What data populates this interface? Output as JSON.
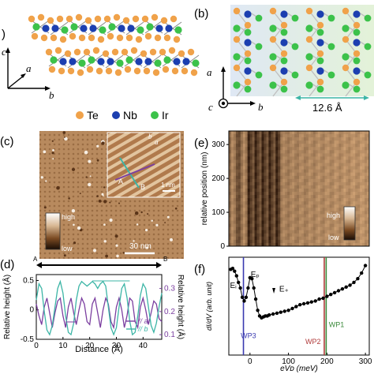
{
  "panels": {
    "a": {
      "label": ")",
      "axes": {
        "c": "c",
        "a": "a",
        "b": "b"
      },
      "legend": [
        {
          "symbol": "Te",
          "color": "#f0a24a"
        },
        {
          "symbol": "Nb",
          "color": "#1c3fb0"
        },
        {
          "symbol": "Ir",
          "color": "#3cc24a"
        }
      ]
    },
    "b": {
      "label": "(b)",
      "axes": {
        "a": "a",
        "c": "c",
        "b": "b"
      },
      "scale": "12.6 Å"
    },
    "c": {
      "label": "(c)",
      "colorbar": {
        "high": "high",
        "low": "low"
      },
      "scalebar": "30 nm",
      "inset": {
        "scalebar": "1 nm",
        "marker_a": "a",
        "marker_b": "b",
        "point_A": "A",
        "point_B": "B"
      }
    },
    "d": {
      "label": "(d)",
      "marker_A": "A",
      "marker_B": "B",
      "legend": [
        {
          "name": "// a",
          "color": "#7b3fa0"
        },
        {
          "name": "// b",
          "color": "#3cb5a6"
        }
      ]
    },
    "e": {
      "label": "(e)",
      "colorbar": {
        "high": "high",
        "low": "low"
      }
    },
    "f": {
      "label": "(f)",
      "annotations": {
        "E1": "Eᵢ",
        "Ep": "Eₚ",
        "Eplus": "E₊"
      },
      "wp_labels": [
        {
          "text": "WP3",
          "color": "#3a3ab0"
        },
        {
          "text": "WP2",
          "color": "#b03a3a"
        },
        {
          "text": "WP1",
          "color": "#3a8a3a"
        }
      ]
    }
  },
  "chart_data": [
    {
      "panel": "d",
      "type": "line",
      "xlabel": "Distance (Å)",
      "ylabel": "Relative height (Å)",
      "ylabel_right": "Relative height (Å)",
      "xticks": [
        0,
        10,
        20,
        30,
        40
      ],
      "yticks_left": [
        -0.5,
        0,
        0.5
      ],
      "yticks_right": [
        0.1,
        0.2,
        0.3
      ],
      "xlim": [
        0,
        47
      ],
      "ylim_left": [
        -0.5,
        0.6
      ],
      "ylim_right": [
        0.08,
        0.36
      ],
      "series": [
        {
          "name": "// a",
          "axis": "left",
          "x": [
            0,
            1,
            2,
            3,
            4,
            5,
            6,
            7,
            8,
            9,
            10,
            11,
            12,
            13,
            14,
            15,
            16,
            17,
            18,
            19,
            20,
            21,
            22,
            23,
            24,
            25,
            26,
            27,
            28,
            29,
            30,
            31,
            32,
            33,
            34,
            35,
            36,
            37,
            38,
            39,
            40,
            41,
            42,
            43,
            44,
            45,
            46,
            47
          ],
          "y": [
            0.1,
            -0.1,
            -0.25,
            0.05,
            0.2,
            -0.05,
            -0.3,
            -0.05,
            0.15,
            0.2,
            -0.1,
            -0.3,
            0.05,
            0.2,
            -0.05,
            -0.25,
            0.0,
            0.2,
            0.1,
            -0.2,
            -0.25,
            0.1,
            0.2,
            -0.05,
            -0.3,
            0.0,
            0.2,
            0.1,
            -0.2,
            -0.3,
            0.05,
            0.2,
            0.0,
            -0.3,
            -0.1,
            0.2,
            0.15,
            -0.2,
            -0.3,
            0.05,
            0.2,
            0.0,
            -0.25,
            -0.05,
            0.15,
            0.1,
            -0.15,
            -0.2
          ]
        },
        {
          "name": "// b",
          "axis": "right",
          "x": [
            0,
            1,
            2,
            3,
            4,
            5,
            6,
            7,
            8,
            9,
            10,
            11,
            12,
            13,
            14,
            15,
            16,
            17,
            18,
            19,
            20,
            21,
            22,
            23,
            24,
            25,
            26,
            27,
            28,
            29,
            30,
            31,
            32,
            33,
            34,
            35,
            36,
            37,
            38,
            39,
            40,
            41,
            42,
            43,
            44,
            45,
            46,
            47
          ],
          "y": [
            0.25,
            0.32,
            0.3,
            0.2,
            0.12,
            0.1,
            0.14,
            0.22,
            0.3,
            0.33,
            0.28,
            0.18,
            0.11,
            0.1,
            0.15,
            0.25,
            0.31,
            0.33,
            0.32,
            0.31,
            0.32,
            0.33,
            0.32,
            0.3,
            0.32,
            0.33,
            0.31,
            0.22,
            0.13,
            0.1,
            0.13,
            0.22,
            0.3,
            0.32,
            0.26,
            0.16,
            0.1,
            0.11,
            0.18,
            0.27,
            0.32,
            0.3,
            0.22,
            0.14,
            0.11,
            0.15,
            0.22,
            0.28
          ]
        }
      ]
    },
    {
      "panel": "e",
      "type": "heatmap",
      "xlabel": "",
      "ylabel": "relative position (nm)",
      "yticks": [
        0,
        100,
        200,
        300
      ],
      "ylim": [
        0,
        340
      ]
    },
    {
      "panel": "f",
      "type": "line",
      "xlabel": "eVᴅ (meV)",
      "ylabel": "dI/dV (arb. unit)",
      "xticks": [
        0,
        100,
        200,
        300
      ],
      "xlim": [
        -55,
        310
      ],
      "ylim": [
        0.0,
        1.05
      ],
      "vlines": [
        {
          "x": -17,
          "color": "#3a3ab0"
        },
        {
          "x": 193,
          "color": "#b03a3a"
        },
        {
          "x": 198,
          "color": "#3a8a3a"
        }
      ],
      "series": [
        {
          "name": "",
          "x": [
            -50,
            -45,
            -40,
            -35,
            -30,
            -25,
            -20,
            -15,
            -10,
            -5,
            0,
            5,
            10,
            15,
            20,
            25,
            30,
            35,
            40,
            45,
            50,
            60,
            70,
            80,
            90,
            100,
            110,
            120,
            130,
            140,
            150,
            160,
            170,
            180,
            190,
            200,
            210,
            220,
            230,
            240,
            250,
            260,
            270,
            280,
            290,
            300
          ],
          "y": [
            0.92,
            0.93,
            0.9,
            0.85,
            0.78,
            0.72,
            0.62,
            0.58,
            0.62,
            0.72,
            0.83,
            0.82,
            0.72,
            0.6,
            0.48,
            0.42,
            0.4,
            0.41,
            0.42,
            0.42,
            0.43,
            0.44,
            0.45,
            0.46,
            0.47,
            0.48,
            0.5,
            0.52,
            0.54,
            0.55,
            0.56,
            0.57,
            0.58,
            0.6,
            0.61,
            0.63,
            0.65,
            0.67,
            0.69,
            0.71,
            0.73,
            0.75,
            0.78,
            0.82,
            0.88,
            0.96
          ]
        }
      ]
    }
  ]
}
